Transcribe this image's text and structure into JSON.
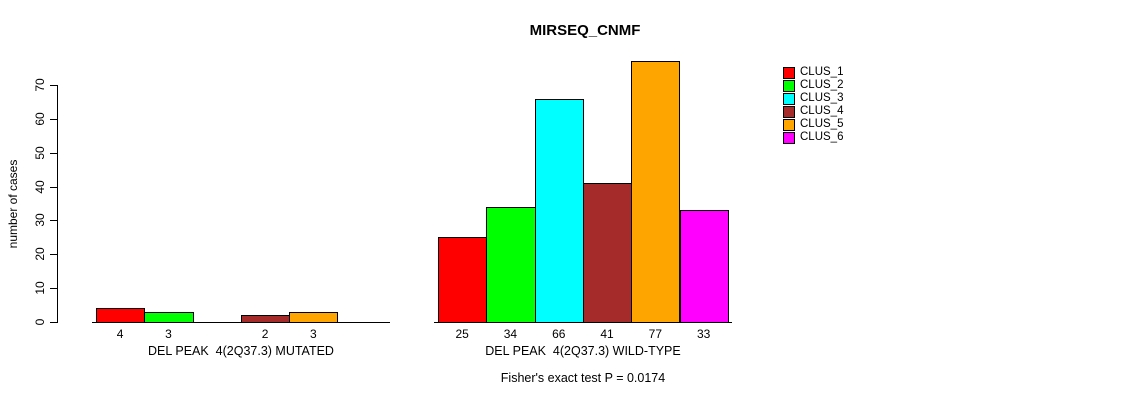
{
  "chart_data": {
    "type": "bar",
    "title": "MIRSEQ_CNMF",
    "ylabel": "number of cases",
    "subtitle": "Fisher's exact test P = 0.0174",
    "ylim": [
      0,
      78
    ],
    "yticks": [
      0,
      10,
      20,
      30,
      40,
      50,
      60,
      70
    ],
    "grid": false,
    "legend_position": "right",
    "series": [
      {
        "name": "CLUS_1",
        "color": "#FF0000"
      },
      {
        "name": "CLUS_2",
        "color": "#00FF00"
      },
      {
        "name": "CLUS_3",
        "color": "#00FFFF"
      },
      {
        "name": "CLUS_4",
        "color": "#A52A2A"
      },
      {
        "name": "CLUS_5",
        "color": "#FFA500"
      },
      {
        "name": "CLUS_6",
        "color": "#FF00FF"
      }
    ],
    "groups": [
      {
        "key": "mutated",
        "label": "DEL PEAK  4(2Q37.3) MUTATED",
        "values": [
          4,
          3,
          0,
          2,
          3,
          0
        ],
        "bar_labels": [
          "4",
          "3",
          "",
          "2",
          "3",
          ""
        ]
      },
      {
        "key": "wild-type",
        "label": "DEL PEAK  4(2Q37.3) WILD-TYPE",
        "values": [
          25,
          34,
          66,
          41,
          77,
          33
        ],
        "bar_labels": [
          "25",
          "34",
          "66",
          "41",
          "77",
          "33"
        ]
      }
    ]
  }
}
